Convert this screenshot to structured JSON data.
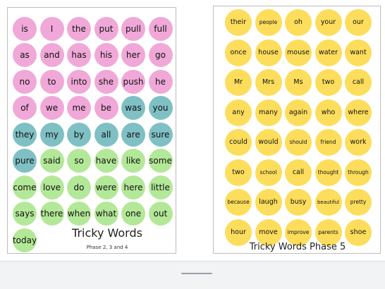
{
  "colors": {
    "pink": "#f0a8d8",
    "teal": "#7fc0c4",
    "green": "#b3e898",
    "yellow": "#fddd5c"
  },
  "left_card": {
    "title": "Tricky Words",
    "subtitle": "Phase 2, 3 and 4",
    "words": [
      {
        "text": "is",
        "color": "pink"
      },
      {
        "text": "I",
        "color": "pink"
      },
      {
        "text": "the",
        "color": "pink"
      },
      {
        "text": "put",
        "color": "pink"
      },
      {
        "text": "pull",
        "color": "pink"
      },
      {
        "text": "full",
        "color": "pink"
      },
      {
        "text": "as",
        "color": "pink"
      },
      {
        "text": "and",
        "color": "pink"
      },
      {
        "text": "has",
        "color": "pink"
      },
      {
        "text": "his",
        "color": "pink"
      },
      {
        "text": "her",
        "color": "pink"
      },
      {
        "text": "go",
        "color": "pink"
      },
      {
        "text": "no",
        "color": "pink"
      },
      {
        "text": "to",
        "color": "pink"
      },
      {
        "text": "into",
        "color": "pink"
      },
      {
        "text": "she",
        "color": "pink"
      },
      {
        "text": "push",
        "color": "pink"
      },
      {
        "text": "he",
        "color": "pink"
      },
      {
        "text": "of",
        "color": "pink"
      },
      {
        "text": "we",
        "color": "pink"
      },
      {
        "text": "me",
        "color": "pink"
      },
      {
        "text": "be",
        "color": "pink"
      },
      {
        "text": "was",
        "color": "teal"
      },
      {
        "text": "you",
        "color": "teal"
      },
      {
        "text": "they",
        "color": "teal"
      },
      {
        "text": "my",
        "color": "teal"
      },
      {
        "text": "by",
        "color": "teal"
      },
      {
        "text": "all",
        "color": "teal"
      },
      {
        "text": "are",
        "color": "teal"
      },
      {
        "text": "sure",
        "color": "teal"
      },
      {
        "text": "pure",
        "color": "teal"
      },
      {
        "text": "said",
        "color": "green"
      },
      {
        "text": "so",
        "color": "green"
      },
      {
        "text": "have",
        "color": "green"
      },
      {
        "text": "like",
        "color": "green"
      },
      {
        "text": "some",
        "color": "green"
      },
      {
        "text": "come",
        "color": "green"
      },
      {
        "text": "love",
        "color": "green"
      },
      {
        "text": "do",
        "color": "green"
      },
      {
        "text": "were",
        "color": "green"
      },
      {
        "text": "here",
        "color": "green"
      },
      {
        "text": "little",
        "color": "green"
      },
      {
        "text": "says",
        "color": "green"
      },
      {
        "text": "there",
        "color": "green"
      },
      {
        "text": "when",
        "color": "green"
      },
      {
        "text": "what",
        "color": "green"
      },
      {
        "text": "one",
        "color": "green"
      },
      {
        "text": "out",
        "color": "green"
      },
      {
        "text": "today",
        "color": "green"
      }
    ]
  },
  "right_card": {
    "title": "Tricky Words Phase 5",
    "words": [
      {
        "text": "their",
        "color": "yellow"
      },
      {
        "text": "people",
        "color": "yellow"
      },
      {
        "text": "oh",
        "color": "yellow"
      },
      {
        "text": "your",
        "color": "yellow"
      },
      {
        "text": "our",
        "color": "yellow"
      },
      {
        "text": "once",
        "color": "yellow"
      },
      {
        "text": "house",
        "color": "yellow"
      },
      {
        "text": "mouse",
        "color": "yellow"
      },
      {
        "text": "water",
        "color": "yellow"
      },
      {
        "text": "want",
        "color": "yellow"
      },
      {
        "text": "Mr",
        "color": "yellow"
      },
      {
        "text": "Mrs",
        "color": "yellow"
      },
      {
        "text": "Ms",
        "color": "yellow"
      },
      {
        "text": "two",
        "color": "yellow"
      },
      {
        "text": "call",
        "color": "yellow"
      },
      {
        "text": "any",
        "color": "yellow"
      },
      {
        "text": "many",
        "color": "yellow"
      },
      {
        "text": "again",
        "color": "yellow"
      },
      {
        "text": "who",
        "color": "yellow"
      },
      {
        "text": "where",
        "color": "yellow"
      },
      {
        "text": "could",
        "color": "yellow"
      },
      {
        "text": "would",
        "color": "yellow"
      },
      {
        "text": "should",
        "color": "yellow"
      },
      {
        "text": "friend",
        "color": "yellow"
      },
      {
        "text": "work",
        "color": "yellow"
      },
      {
        "text": "two",
        "color": "yellow"
      },
      {
        "text": "school",
        "color": "yellow"
      },
      {
        "text": "call",
        "color": "yellow"
      },
      {
        "text": "thought",
        "color": "yellow"
      },
      {
        "text": "through",
        "color": "yellow"
      },
      {
        "text": "because",
        "color": "yellow"
      },
      {
        "text": "laugh",
        "color": "yellow"
      },
      {
        "text": "busy",
        "color": "yellow"
      },
      {
        "text": "beautiful",
        "color": "yellow"
      },
      {
        "text": "pretty",
        "color": "yellow"
      },
      {
        "text": "hour",
        "color": "yellow"
      },
      {
        "text": "move",
        "color": "yellow"
      },
      {
        "text": "improve",
        "color": "yellow"
      },
      {
        "text": "parents",
        "color": "yellow"
      },
      {
        "text": "shoe",
        "color": "yellow"
      }
    ]
  }
}
